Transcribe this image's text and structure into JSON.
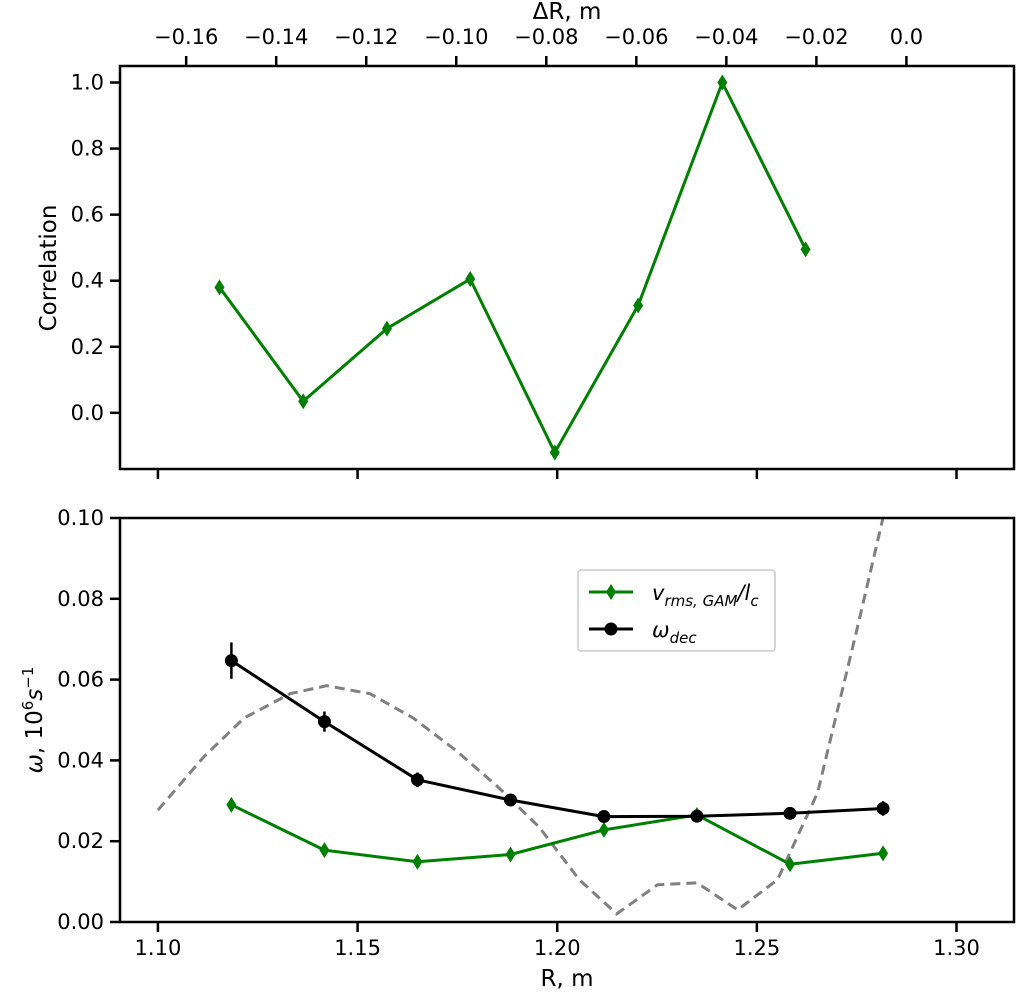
{
  "chart_data": [
    {
      "type": "line",
      "panel": "top",
      "ylabel": "Correlation",
      "top_xlabel": "ΔR, m",
      "xlim": [
        -0.1747,
        0.0239
      ],
      "ylim": [
        -0.17,
        1.05
      ],
      "top_xticks": [
        -0.16,
        -0.14,
        -0.12,
        -0.1,
        -0.08,
        -0.06,
        -0.04,
        -0.02,
        0.0
      ],
      "top_xtick_labels": [
        "−0.16",
        "−0.14",
        "−0.12",
        "−0.10",
        "−0.08",
        "−0.06",
        "−0.04",
        "−0.02",
        "0.0"
      ],
      "yticks": [
        0.0,
        0.2,
        0.4,
        0.6,
        0.8,
        1.0
      ],
      "ytick_labels": [
        "0.0",
        "0.2",
        "0.4",
        "0.6",
        "0.8",
        "1.0"
      ],
      "grid": false,
      "series": [
        {
          "color": "#008000",
          "marker": "thin-diamond",
          "points": [
            {
              "x": -0.1526,
              "y": 0.38
            },
            {
              "x": -0.134,
              "y": 0.035
            },
            {
              "x": -0.1154,
              "y": 0.255
            },
            {
              "x": -0.0969,
              "y": 0.405
            },
            {
              "x": -0.0781,
              "y": -0.12
            },
            {
              "x": -0.0596,
              "y": 0.325
            },
            {
              "x": -0.0409,
              "y": 1.0
            },
            {
              "x": -0.0224,
              "y": 0.495
            }
          ]
        }
      ]
    },
    {
      "type": "line",
      "panel": "bottom",
      "xlabel": "R, m",
      "ylabel": "ω, 10⁶s⁻¹",
      "xlim": [
        1.0905,
        1.3144
      ],
      "ylim": [
        0.0,
        0.1
      ],
      "xticks": [
        1.1,
        1.15,
        1.2,
        1.25,
        1.3
      ],
      "xtick_labels": [
        "1.10",
        "1.15",
        "1.20",
        "1.25",
        "1.30"
      ],
      "yticks": [
        0.0,
        0.02,
        0.04,
        0.06,
        0.08,
        0.1
      ],
      "ytick_labels": [
        "0.00",
        "0.02",
        "0.04",
        "0.06",
        "0.08",
        "0.10"
      ],
      "grid": false,
      "legend_position": "upper-center",
      "series": [
        {
          "name": "v_rms,GAM/l_c",
          "name_main": "v",
          "name_sub": "rms, GAM",
          "name_slash": "/l",
          "name_sub2": "c",
          "color": "#008000",
          "marker": "thin-diamond",
          "points": [
            {
              "x": 1.1184,
              "y": 0.029
            },
            {
              "x": 1.1417,
              "y": 0.0178
            },
            {
              "x": 1.165,
              "y": 0.0149
            },
            {
              "x": 1.1883,
              "y": 0.0167
            },
            {
              "x": 1.2117,
              "y": 0.0228
            },
            {
              "x": 1.235,
              "y": 0.0265
            },
            {
              "x": 1.2583,
              "y": 0.0143
            },
            {
              "x": 1.2816,
              "y": 0.017
            }
          ]
        },
        {
          "name": "ω_dec",
          "name_main": "ω",
          "name_sub": "dec",
          "color": "#000000",
          "marker": "circle",
          "points": [
            {
              "x": 1.1184,
              "y": 0.0647,
              "err": 0.0045
            },
            {
              "x": 1.1417,
              "y": 0.0496,
              "err": 0.0025
            },
            {
              "x": 1.165,
              "y": 0.0352,
              "err": 0.0018
            },
            {
              "x": 1.1883,
              "y": 0.0302,
              "err": 0.0012
            },
            {
              "x": 1.2117,
              "y": 0.0261,
              "err": 0.0008
            },
            {
              "x": 1.235,
              "y": 0.0262,
              "err": 0.0008
            },
            {
              "x": 1.2583,
              "y": 0.0269,
              "err": 0.001
            },
            {
              "x": 1.2816,
              "y": 0.0281,
              "err": 0.0018
            }
          ]
        },
        {
          "color": "#808080",
          "style": "dashed",
          "points": [
            {
              "x": 1.1,
              "y": 0.0277
            },
            {
              "x": 1.1116,
              "y": 0.041
            },
            {
              "x": 1.1216,
              "y": 0.0505
            },
            {
              "x": 1.1331,
              "y": 0.0565
            },
            {
              "x": 1.1423,
              "y": 0.0585
            },
            {
              "x": 1.1531,
              "y": 0.0565
            },
            {
              "x": 1.1639,
              "y": 0.0505
            },
            {
              "x": 1.1746,
              "y": 0.0425
            },
            {
              "x": 1.1851,
              "y": 0.0335
            },
            {
              "x": 1.1955,
              "y": 0.0235
            },
            {
              "x": 1.2055,
              "y": 0.0105
            },
            {
              "x": 1.2149,
              "y": 0.002
            },
            {
              "x": 1.2251,
              "y": 0.0092
            },
            {
              "x": 1.235,
              "y": 0.0097
            },
            {
              "x": 1.2452,
              "y": 0.003
            },
            {
              "x": 1.2552,
              "y": 0.0105
            },
            {
              "x": 1.2652,
              "y": 0.032
            },
            {
              "x": 1.2752,
              "y": 0.073
            },
            {
              "x": 1.2816,
              "y": 0.1
            }
          ]
        }
      ]
    }
  ]
}
